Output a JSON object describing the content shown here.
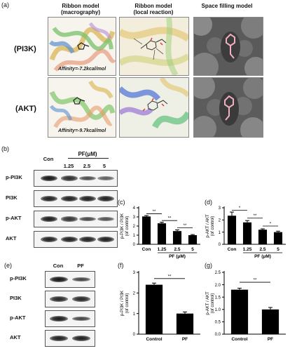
{
  "panel_labels": {
    "a": "(a)",
    "b": "(b)",
    "c": "(c)",
    "d": "(d)",
    "e": "(e)",
    "f": "(f)",
    "g": "(g)"
  },
  "panel_a": {
    "col_headers": [
      {
        "line1": "Ribbon model",
        "line2": "(macrography)"
      },
      {
        "line1": "Ribbon model",
        "line2": "(local reaction)"
      },
      {
        "line1": "Space filling model",
        "line2": ""
      }
    ],
    "rows": [
      {
        "label": "(PI3K)",
        "affinity": "Affinity=-7.2kcal/mol"
      },
      {
        "label": "(AKT)",
        "affinity": "Affinity=-9.7kcal/mol"
      }
    ]
  },
  "panel_b": {
    "treatment_label": "PF(μM)",
    "lanes": [
      "Con",
      "1.25",
      "2.5",
      "5"
    ],
    "blots": [
      "p-PI3K",
      "PI3K",
      "p-AKT",
      "AKT"
    ]
  },
  "panel_e": {
    "lanes": [
      "Con",
      "PF"
    ],
    "blots": [
      "p-PI3K",
      "PI3K",
      "p-AKT",
      "AKT"
    ]
  },
  "chart_data": [
    {
      "id": "c",
      "type": "bar",
      "categories": [
        "Con",
        "1.25",
        "2.5",
        "5"
      ],
      "values": [
        3.05,
        2.3,
        1.45,
        1.0
      ],
      "errors": [
        0.1,
        0.12,
        0.13,
        0.07
      ],
      "ylabel_line1": "p-PI3K / PI3K",
      "ylabel_line2": "(of control)",
      "xlabel": "PF (μM)",
      "ylim": [
        0,
        4
      ],
      "yticks": [
        0,
        1,
        2,
        3,
        4
      ],
      "significance": [
        {
          "from": 0,
          "to": 1,
          "y": 3.35,
          "label": "**"
        },
        {
          "from": 1,
          "to": 2,
          "y": 2.6,
          "label": "**"
        },
        {
          "from": 2,
          "to": 3,
          "y": 1.8,
          "label": "**"
        }
      ]
    },
    {
      "id": "d",
      "type": "bar",
      "categories": [
        "Con",
        "1.25",
        "2.5",
        "5"
      ],
      "values": [
        2.35,
        1.8,
        1.2,
        1.0
      ],
      "errors": [
        0.3,
        0.15,
        0.07,
        0.08
      ],
      "ylabel_line1": "p-AKT / AKT",
      "ylabel_line2": "(of control)",
      "xlabel": "PF (μM)",
      "ylim": [
        0,
        3
      ],
      "yticks": [
        0,
        1,
        2,
        3
      ],
      "significance": [
        {
          "from": 0,
          "to": 1,
          "y": 2.8,
          "label": "*"
        },
        {
          "from": 1,
          "to": 2,
          "y": 2.15,
          "label": "**"
        },
        {
          "from": 2,
          "to": 3,
          "y": 1.5,
          "label": "*"
        }
      ]
    },
    {
      "id": "f",
      "type": "bar",
      "categories": [
        "Control",
        "PF"
      ],
      "values": [
        2.4,
        1.0
      ],
      "errors": [
        0.08,
        0.08
      ],
      "ylabel_line1": "p-PI3K / PI3K",
      "ylabel_line2": "(of control)",
      "xlabel": "",
      "ylim": [
        0,
        3
      ],
      "yticks": [
        0,
        1,
        2,
        3
      ],
      "significance": [
        {
          "from": 0,
          "to": 1,
          "y": 2.7,
          "label": "**"
        }
      ]
    },
    {
      "id": "g",
      "type": "bar",
      "categories": [
        "Control",
        "PF"
      ],
      "values": [
        1.8,
        1.0
      ],
      "errors": [
        0.06,
        0.08
      ],
      "ylabel_line1": "p-AKT / AKT",
      "ylabel_line2": "(of control)",
      "xlabel": "",
      "ylim": [
        0,
        2.5
      ],
      "yticks": [
        0.0,
        0.5,
        1.0,
        1.5,
        2.0,
        2.5
      ],
      "significance": [
        {
          "from": 0,
          "to": 1,
          "y": 2.1,
          "label": "**"
        }
      ]
    }
  ]
}
